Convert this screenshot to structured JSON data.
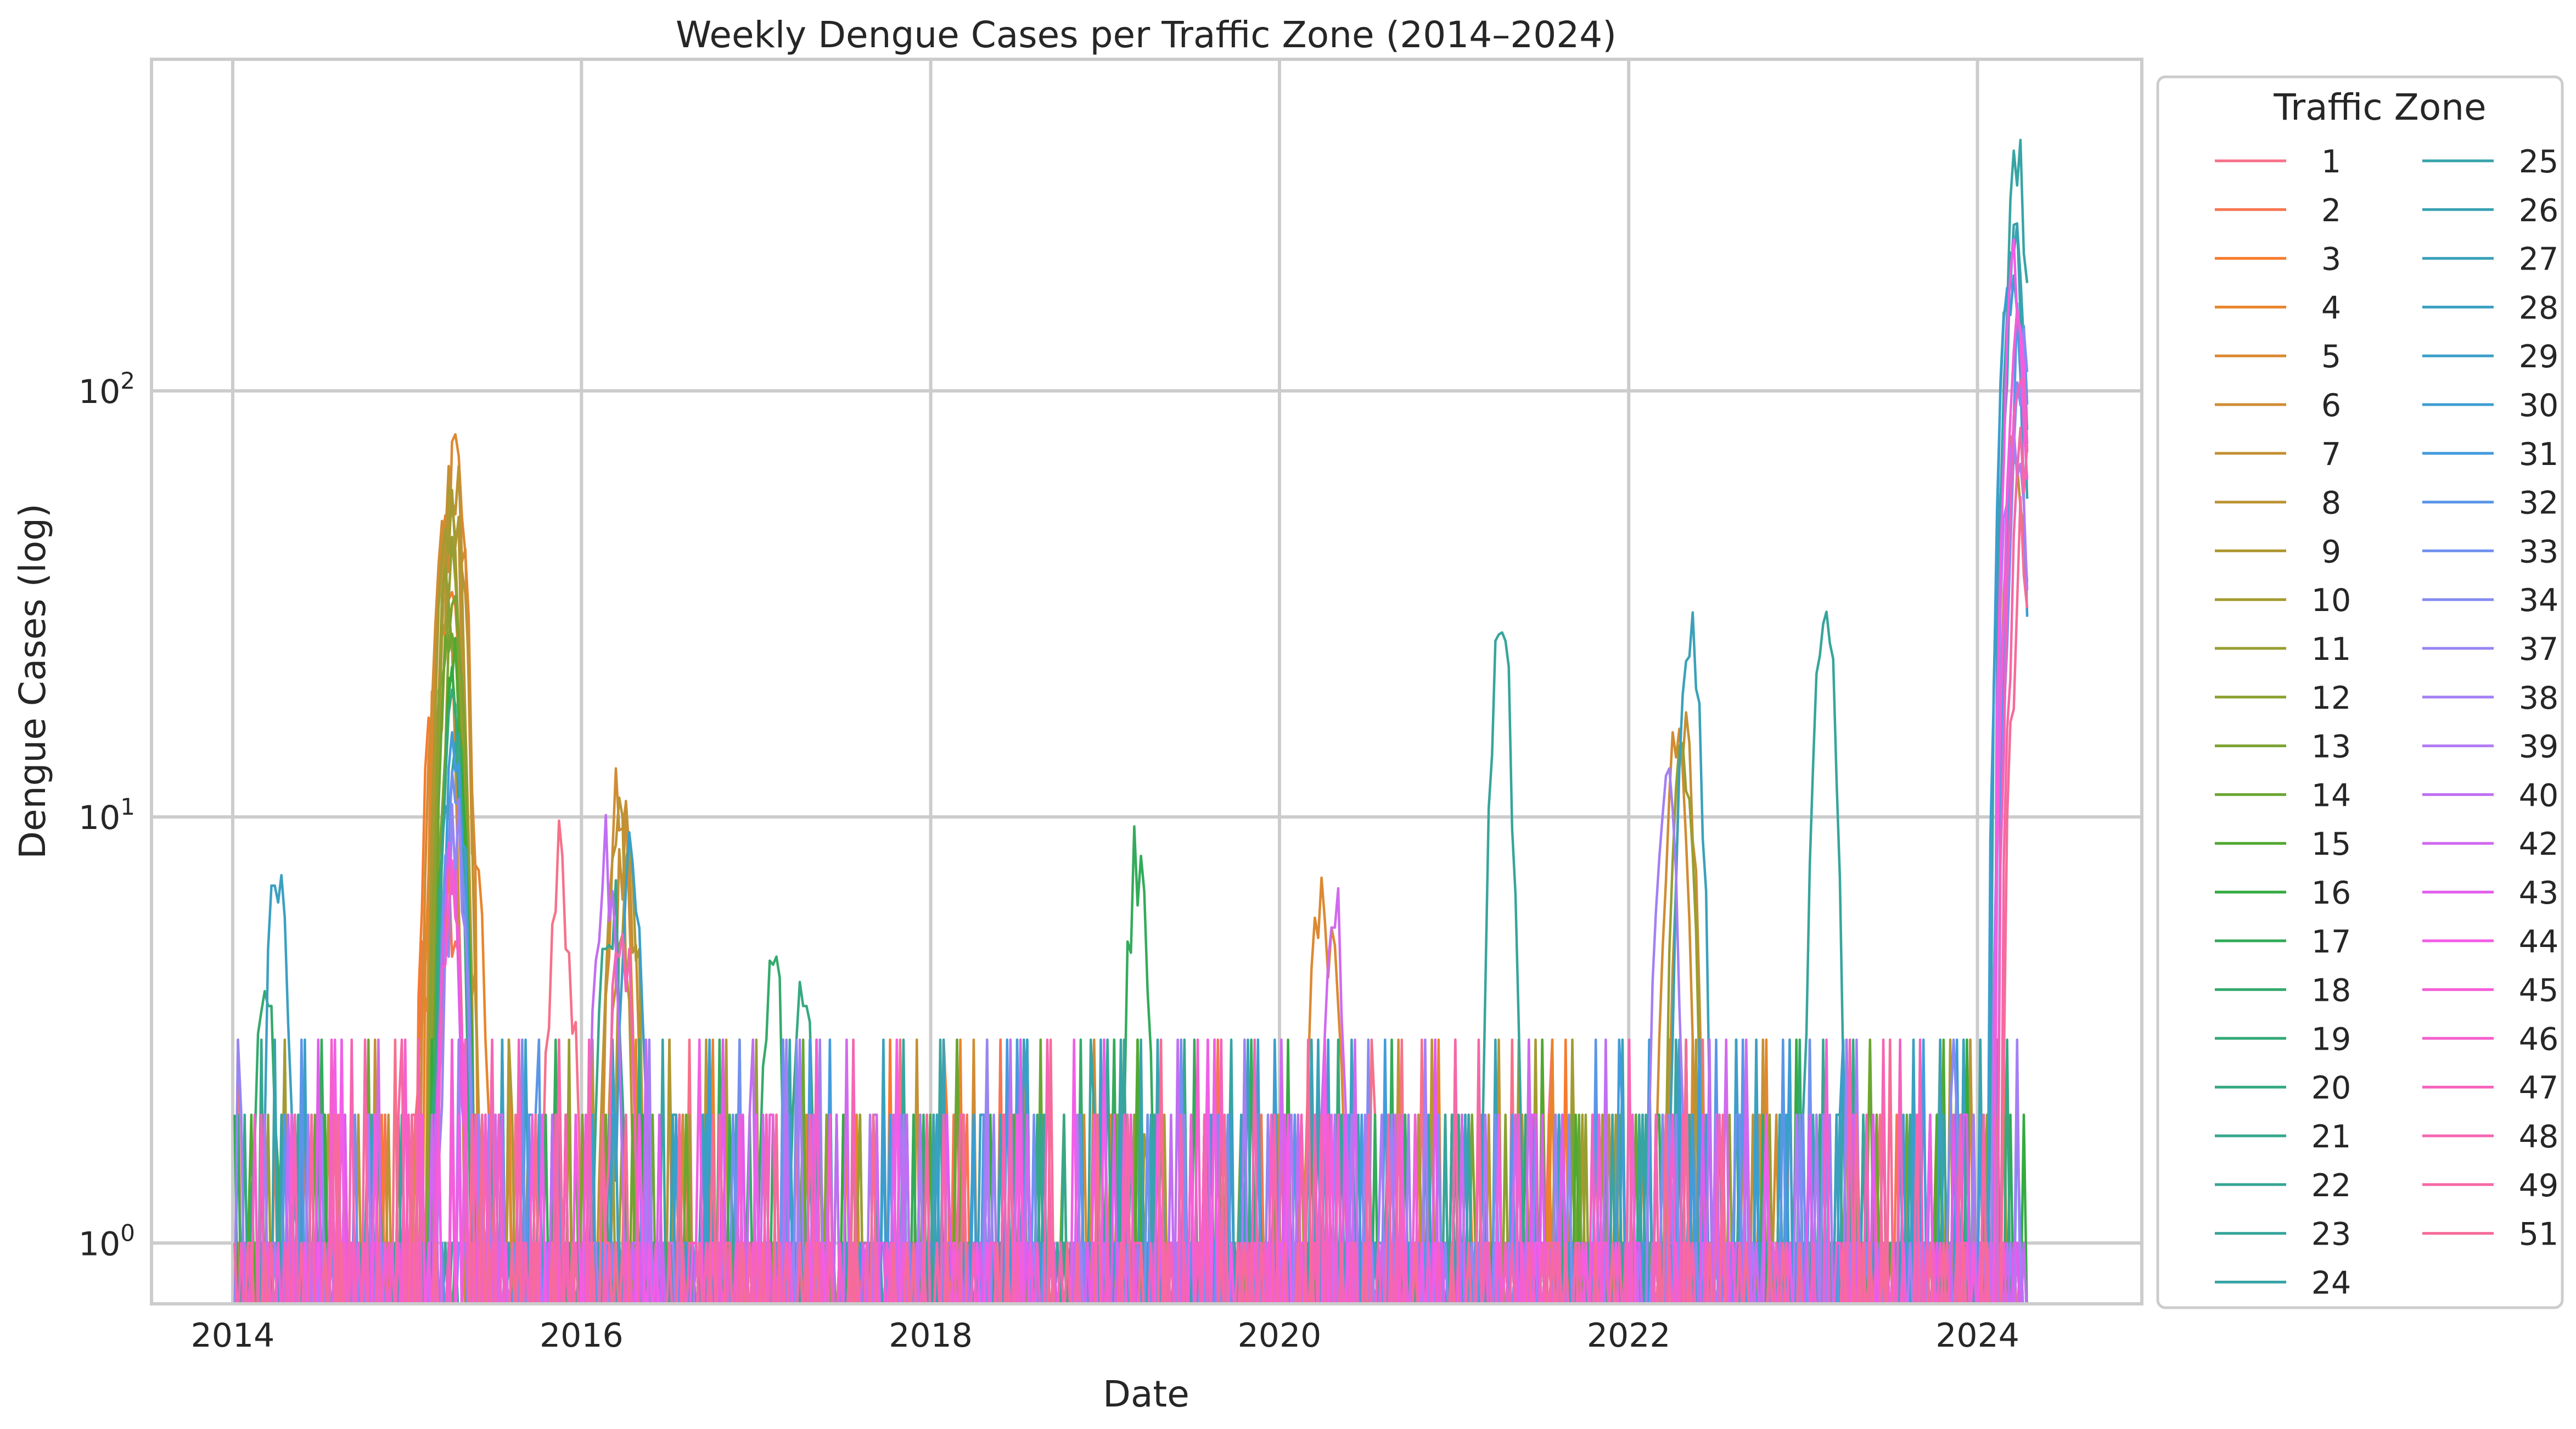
{
  "chart_data": {
    "type": "line",
    "title": "Weekly Dengue Cases per Traffic Zone (2014–2024)",
    "xlabel": "Date",
    "ylabel": "Dengue Cases (log)",
    "yscale": "log",
    "xlim": [
      "2013-07-15",
      "2024-12-10"
    ],
    "ylim": [
      0.72,
      600
    ],
    "x_ticks": [
      "2014",
      "2016",
      "2018",
      "2020",
      "2022",
      "2024"
    ],
    "y_ticks": [
      {
        "base": "10",
        "exp": "0"
      },
      {
        "base": "10",
        "exp": "1"
      },
      {
        "base": "10",
        "exp": "2"
      }
    ],
    "grid": true,
    "legend": {
      "title": "Traffic Zone",
      "placement": "outside right",
      "columns": 2
    },
    "series": [
      {
        "name": "1",
        "color": "#f77189",
        "values": {
          "2015-10-25": 3,
          "2015-11-15": 10,
          "2015-12-06": 5
        }
      },
      {
        "name": "2",
        "color": "#f7754f",
        "values": {
          "2015-02-10": 6,
          "2015-04-01": 8,
          "2015-05-05": 3
        }
      },
      {
        "name": "3",
        "color": "#f77b2e",
        "values": {
          "2015-03-01": 26,
          "2015-04-05": 40,
          "2015-05-10": 6
        }
      },
      {
        "name": "4",
        "color": "#e8852a",
        "values": {
          "2015-03-20": 60,
          "2015-04-12": 85,
          "2015-05-20": 10
        }
      },
      {
        "name": "5",
        "color": "#dc8932",
        "values": {
          "2015-03-25": 70,
          "2015-04-15": 90,
          "2020-03-25": 8,
          "2020-04-20": 6
        }
      },
      {
        "name": "6",
        "color": "#d18c33",
        "values": {
          "2015-03-15": 50,
          "2016-03-20": 15,
          "2022-04-10": 25
        }
      },
      {
        "name": "7",
        "color": "#c59034",
        "values": {
          "2015-04-01": 80,
          "2016-04-01": 12,
          "2022-05-01": 20
        }
      },
      {
        "name": "8",
        "color": "#bb9434",
        "values": {
          "2015-04-10": 92,
          "2016-03-15": 13,
          "2024-03-20": 100
        }
      },
      {
        "name": "9",
        "color": "#af9832",
        "values": {
          "2015-04-05": 70,
          "2016-04-10": 10
        }
      },
      {
        "name": "10",
        "color": "#a39b31",
        "values": {
          "2015-03-28": 65,
          "2019-04-01": 2
        }
      },
      {
        "name": "11",
        "color": "#979e31",
        "values": {
          "2015-04-02": 55,
          "2022-04-25": 18
        }
      },
      {
        "name": "12",
        "color": "#8aa131",
        "values": {
          "2015-03-30": 45
        }
      },
      {
        "name": "13",
        "color": "#7ca331",
        "values": {
          "2015-04-08": 40
        }
      },
      {
        "name": "14",
        "color": "#6aa631",
        "values": {
          "2015-04-03": 35
        }
      },
      {
        "name": "15",
        "color": "#50a931",
        "values": {
          "2015-04-06": 30
        }
      },
      {
        "name": "16",
        "color": "#33ab3f",
        "values": {
          "2015-04-12": 28
        }
      },
      {
        "name": "17",
        "color": "#33ab5b",
        "values": {
          "2019-03-10": 11
        }
      },
      {
        "name": "18",
        "color": "#34aa6c",
        "values": {
          "2014-03-10": 6,
          "2017-02-05": 6
        }
      },
      {
        "name": "19",
        "color": "#35a979",
        "values": {
          "2015-04-04": 25
        }
      },
      {
        "name": "20",
        "color": "#36a883",
        "values": {
          "2017-04-10": 5
        }
      },
      {
        "name": "21",
        "color": "#36a78c",
        "values": {
          "2016-03-01": 9
        }
      },
      {
        "name": "22",
        "color": "#37a694",
        "values": {
          "2015-04-07": 20
        }
      },
      {
        "name": "23",
        "color": "#37a59c",
        "values": {
          "2021-04-10": 34,
          "2023-02-15": 42
        }
      },
      {
        "name": "24",
        "color": "#38a4a4",
        "values": {
          "2024-03-25": 470
        }
      },
      {
        "name": "25",
        "color": "#38a3ab",
        "values": {
          "2024-03-15": 300
        }
      },
      {
        "name": "26",
        "color": "#39a2b2",
        "values": {
          "2024-03-20": 260
        }
      },
      {
        "name": "27",
        "color": "#3aa1b9",
        "values": {
          "2022-05-10": 38
        }
      },
      {
        "name": "28",
        "color": "#3ba0c1",
        "values": {
          "2014-04-05": 9
        }
      },
      {
        "name": "29",
        "color": "#3b9fc8",
        "values": {
          "2016-04-15": 12
        }
      },
      {
        "name": "30",
        "color": "#3c9dd2",
        "values": {
          "2024-03-10": 220
        }
      },
      {
        "name": "31",
        "color": "#439bde",
        "values": {
          "2015-04-11": 18
        }
      },
      {
        "name": "32",
        "color": "#5a96e8",
        "values": {
          "2024-03-28": 170
        }
      },
      {
        "name": "33",
        "color": "#7191f0",
        "values": {
          "2015-04-09": 15
        }
      },
      {
        "name": "34",
        "color": "#858bf3",
        "values": {
          "2024-04-02": 160
        }
      },
      {
        "name": "37",
        "color": "#9785f4",
        "values": {
          "2015-04-13": 12
        }
      },
      {
        "name": "38",
        "color": "#a47ff5",
        "values": {
          "2022-03-20": 15
        }
      },
      {
        "name": "39",
        "color": "#b27af5",
        "values": {
          "2024-03-18": 120
        }
      },
      {
        "name": "40",
        "color": "#c06ef2",
        "values": {
          "2016-02-20": 11
        }
      },
      {
        "name": "42",
        "color": "#d169ef",
        "values": {
          "2020-04-25": 8
        }
      },
      {
        "name": "43",
        "color": "#e25ced",
        "values": {
          "2015-04-01": 10
        }
      },
      {
        "name": "44",
        "color": "#f35de7",
        "values": {
          "2024-03-22": 250
        }
      },
      {
        "name": "45",
        "color": "#f55ed9",
        "values": {
          "2024-03-26": 180
        }
      },
      {
        "name": "46",
        "color": "#f55fcc",
        "values": {
          "2015-04-04": 9
        }
      },
      {
        "name": "47",
        "color": "#f561bd",
        "values": {
          "2024-03-30": 140
        }
      },
      {
        "name": "48",
        "color": "#f565b2",
        "values": {
          "2016-03-25": 8
        }
      },
      {
        "name": "49",
        "color": "#f668a6",
        "values": {
          "2024-04-04": 90
        }
      },
      {
        "name": "51",
        "color": "#f66c98",
        "values": {
          "2024-04-06": 60
        }
      }
    ]
  }
}
